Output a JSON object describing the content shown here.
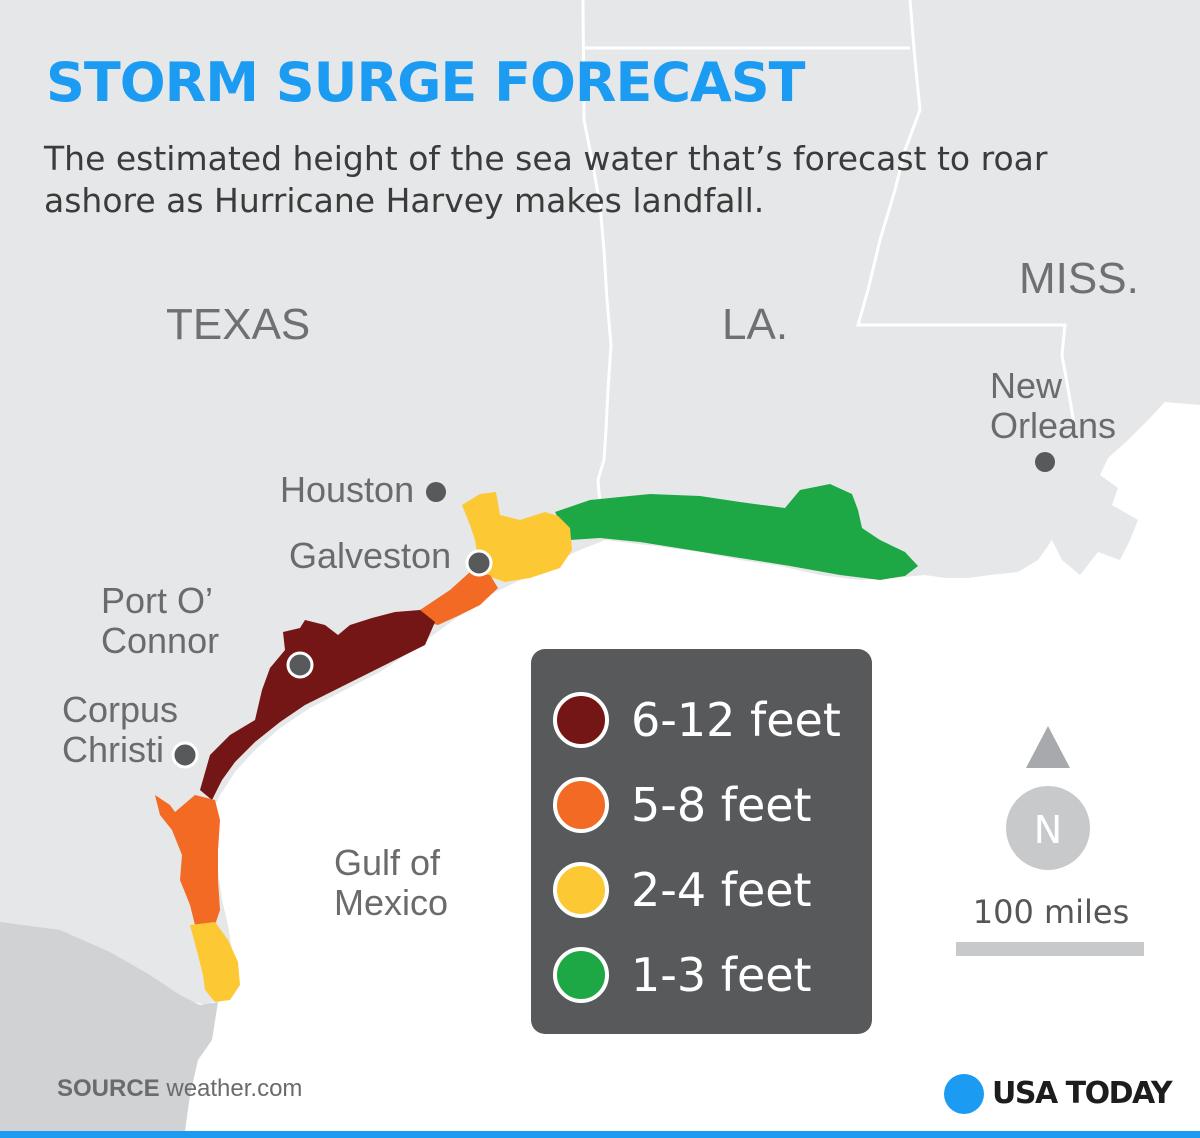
{
  "title": "STORM SURGE FORECAST",
  "subtitle": "The estimated height of the sea water that’s forecast to roar ashore as Hurricane Harvey makes landfall.",
  "states": {
    "texas": "TEXAS",
    "louisiana": "LA.",
    "mississippi": "MISS."
  },
  "cities": {
    "houston": "Houston",
    "galveston": "Galveston",
    "port_oconnor": "Port O’ Connor",
    "corpus_christi": "Corpus Christi",
    "new_orleans": "New Orleans"
  },
  "water_body": "Gulf of Mexico",
  "legend": {
    "items": [
      {
        "label": "6-12 feet",
        "color": "#741516"
      },
      {
        "label": "5-8 feet",
        "color": "#f26a24"
      },
      {
        "label": "2-4 feet",
        "color": "#fcc833"
      },
      {
        "label": "1-3 feet",
        "color": "#1ea845"
      }
    ]
  },
  "compass": {
    "letter": "N",
    "icon": "north-arrow-icon"
  },
  "scale": {
    "label": "100 miles"
  },
  "source": {
    "key": "SOURCE",
    "value": "weather.com"
  },
  "brand": {
    "name": "USA TODAY",
    "accent": "#1b9cf2"
  },
  "colors": {
    "land": "#e6e7e8",
    "mexico_land": "#d1d2d4",
    "water": "#ffffff",
    "legend_bg": "#58595b"
  }
}
